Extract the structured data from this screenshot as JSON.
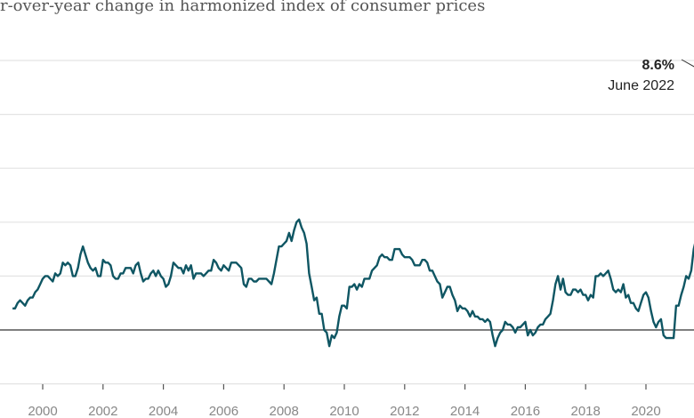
{
  "chart_data": {
    "type": "line",
    "title": "r-over-year change in harmonized index of consumer prices",
    "xlabel": "",
    "ylabel": "",
    "x_ticks": [
      "2000",
      "2002",
      "2004",
      "2006",
      "2008",
      "2010",
      "2012",
      "2014",
      "2016",
      "2018",
      "2020",
      "20"
    ],
    "ylim": [
      -2,
      10
    ],
    "y_gridlines": [
      -2,
      2,
      4,
      6,
      8,
      10
    ],
    "zero_line": 0,
    "grid": true,
    "start": "1999-01",
    "frequency": "monthly",
    "color": "#0f5663",
    "values": [
      0.8,
      0.8,
      1.0,
      1.1,
      1.0,
      0.9,
      1.1,
      1.2,
      1.2,
      1.4,
      1.5,
      1.7,
      1.9,
      2.0,
      2.0,
      1.9,
      1.8,
      2.1,
      2.0,
      2.1,
      2.5,
      2.4,
      2.5,
      2.4,
      2.0,
      2.0,
      2.3,
      2.8,
      3.1,
      2.8,
      2.5,
      2.3,
      2.2,
      2.3,
      2.0,
      2.0,
      2.6,
      2.5,
      2.5,
      2.4,
      2.0,
      1.9,
      1.9,
      2.1,
      2.1,
      2.3,
      2.3,
      2.3,
      2.1,
      2.4,
      2.5,
      2.1,
      1.8,
      1.9,
      1.9,
      2.1,
      2.2,
      2.0,
      2.2,
      2.0,
      1.9,
      1.6,
      1.7,
      2.0,
      2.5,
      2.4,
      2.3,
      2.3,
      2.1,
      2.4,
      2.2,
      2.4,
      1.9,
      2.1,
      2.1,
      2.1,
      2.0,
      2.1,
      2.2,
      2.2,
      2.6,
      2.5,
      2.3,
      2.2,
      2.4,
      2.3,
      2.2,
      2.5,
      2.5,
      2.5,
      2.4,
      2.3,
      1.7,
      1.6,
      1.9,
      1.9,
      1.8,
      1.8,
      1.9,
      1.9,
      1.9,
      1.9,
      1.8,
      1.7,
      2.1,
      2.6,
      3.1,
      3.1,
      3.2,
      3.3,
      3.6,
      3.3,
      3.7,
      4.0,
      4.1,
      3.8,
      3.6,
      3.2,
      2.1,
      1.6,
      1.1,
      1.2,
      0.6,
      0.6,
      0.0,
      -0.1,
      -0.6,
      -0.2,
      -0.3,
      -0.1,
      0.5,
      0.9,
      0.9,
      0.8,
      1.6,
      1.6,
      1.7,
      1.5,
      1.7,
      1.6,
      1.9,
      1.9,
      1.9,
      2.2,
      2.3,
      2.4,
      2.7,
      2.8,
      2.7,
      2.7,
      2.6,
      2.6,
      3.0,
      3.0,
      3.0,
      2.8,
      2.7,
      2.7,
      2.7,
      2.6,
      2.4,
      2.4,
      2.4,
      2.6,
      2.6,
      2.5,
      2.2,
      2.2,
      2.0,
      1.8,
      1.7,
      1.2,
      1.4,
      1.6,
      1.6,
      1.3,
      1.1,
      0.7,
      0.9,
      0.8,
      0.8,
      0.7,
      0.5,
      0.7,
      0.5,
      0.5,
      0.4,
      0.4,
      0.3,
      0.4,
      0.3,
      -0.2,
      -0.6,
      -0.3,
      -0.1,
      0.0,
      0.3,
      0.2,
      0.2,
      0.1,
      -0.1,
      0.1,
      0.1,
      0.2,
      0.3,
      -0.2,
      0.0,
      -0.2,
      -0.1,
      0.1,
      0.2,
      0.2,
      0.4,
      0.5,
      0.6,
      1.1,
      1.7,
      2.0,
      1.5,
      1.9,
      1.4,
      1.3,
      1.3,
      1.5,
      1.5,
      1.4,
      1.5,
      1.3,
      1.3,
      1.1,
      1.3,
      1.2,
      2.0,
      2.0,
      2.1,
      2.0,
      2.1,
      2.2,
      1.9,
      1.5,
      1.4,
      1.5,
      1.4,
      1.7,
      1.2,
      1.3,
      1.0,
      1.0,
      0.8,
      0.7,
      1.0,
      1.3,
      1.4,
      1.2,
      0.7,
      0.3,
      0.1,
      0.3,
      0.4,
      -0.2,
      -0.3,
      -0.3,
      -0.3,
      -0.3,
      0.9,
      0.9,
      1.3,
      1.6,
      2.0,
      1.9,
      2.2,
      3.0,
      3.4,
      4.1,
      4.9,
      5.0,
      5.1,
      5.9,
      7.4,
      7.4,
      8.1,
      8.6
    ],
    "annotation": {
      "value": "8.6%",
      "label": "June 2022"
    }
  }
}
